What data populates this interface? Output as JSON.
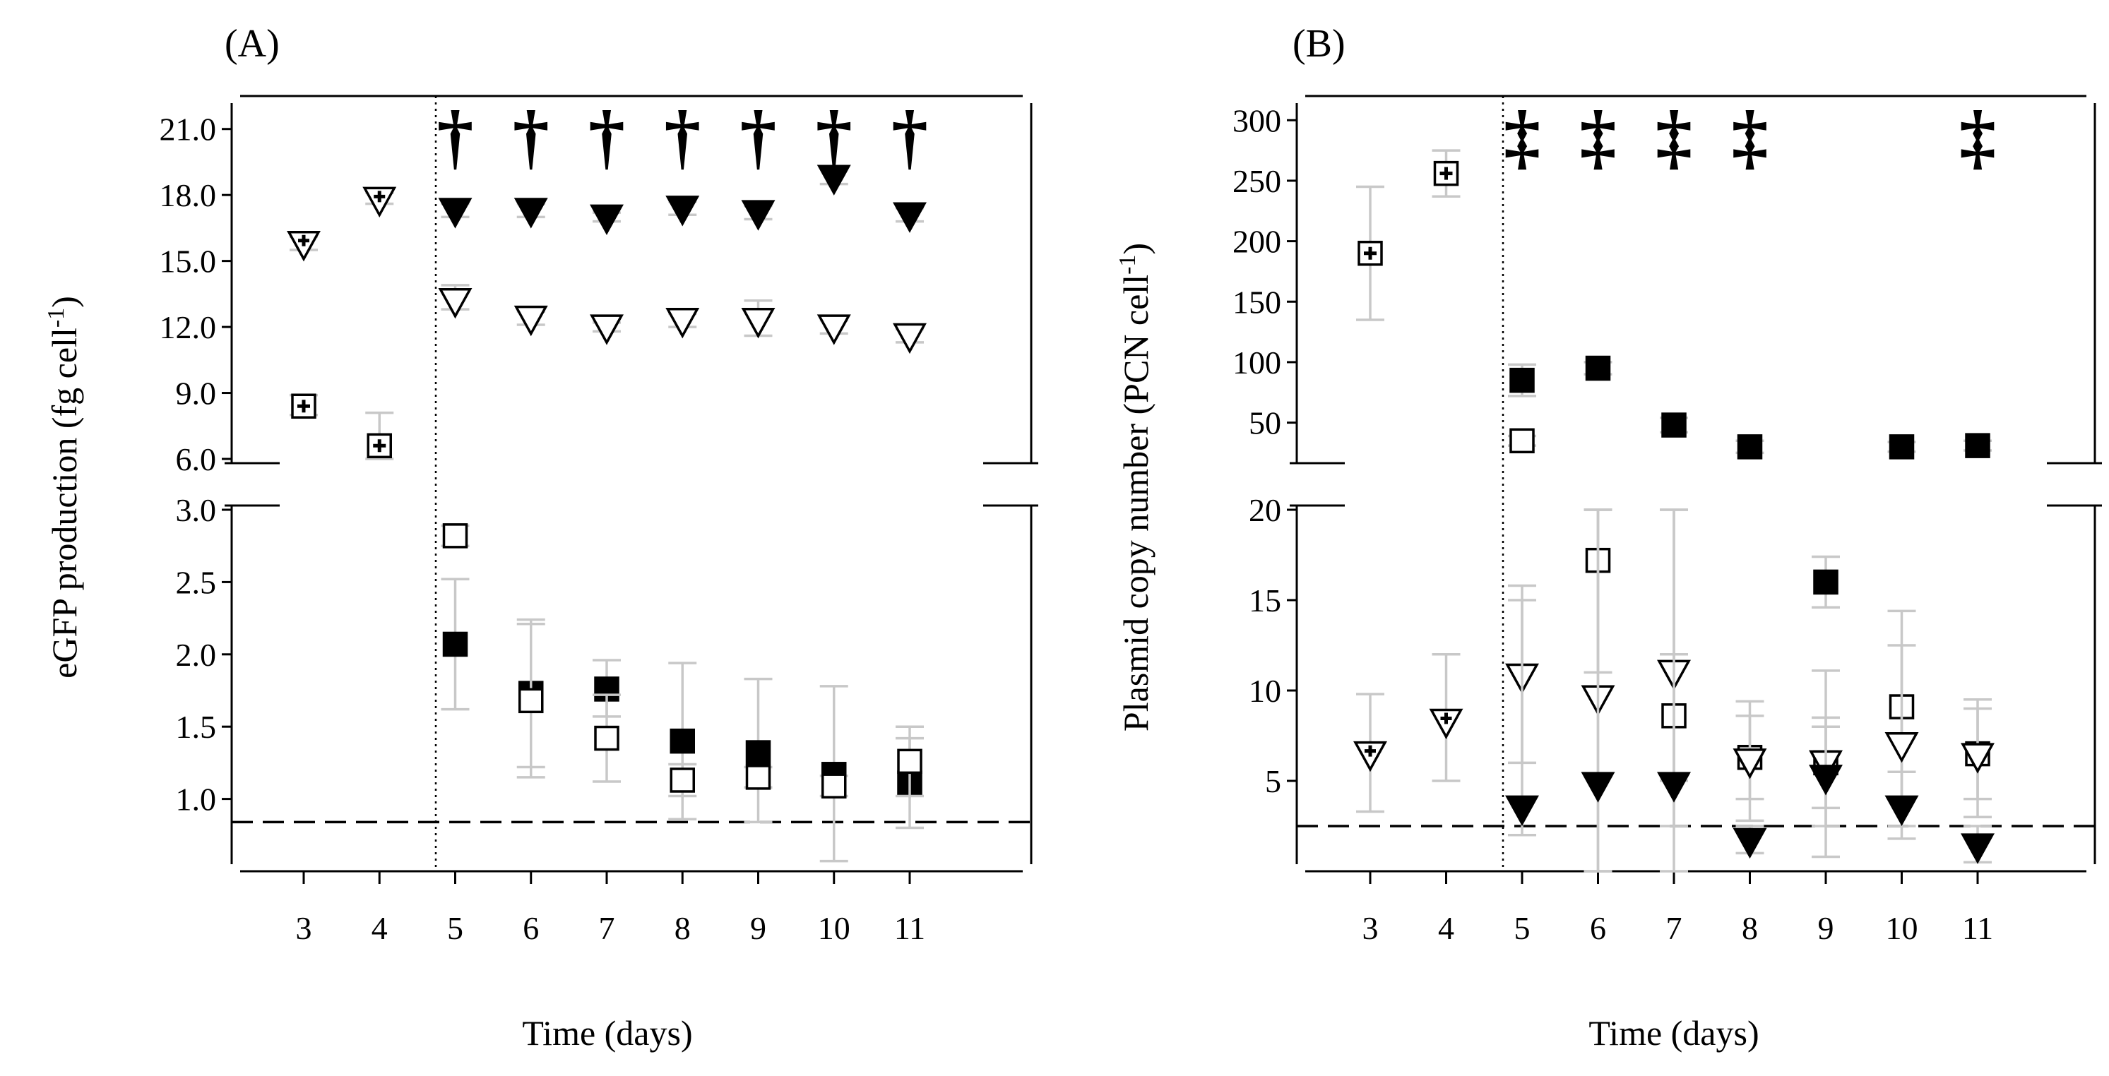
{
  "chart_data": [
    {
      "type": "scatter",
      "panel_label": "(A)",
      "xlabel": "Time (days)",
      "ylabel_main": "eGFP production (fg cell",
      "ylabel_sup": "-1",
      "ylabel_close": ")",
      "x_ticks": [
        3,
        4,
        5,
        6,
        7,
        8,
        9,
        10,
        11
      ],
      "upper_axis": {
        "range": [
          6.0,
          22.5
        ],
        "ticks": [
          "6.0",
          "9.0",
          "12.0",
          "15.0",
          "18.0",
          "21.0"
        ]
      },
      "lower_axis": {
        "range": [
          0.5,
          3.0
        ],
        "ticks": [
          "1.0",
          "1.5",
          "2.0",
          "2.5",
          "3.0"
        ]
      },
      "threshold": 0.84,
      "marker_symbol": "†",
      "marker_days": [
        5,
        6,
        7,
        8,
        9,
        10,
        11
      ],
      "series": [
        {
          "name": "pre-induction square",
          "marker": "square-cross",
          "axis": "upper",
          "points": [
            {
              "x": 3,
              "y": 8.4,
              "lo": 8.0,
              "hi": 8.9
            },
            {
              "x": 4,
              "y": 6.6,
              "lo": 6.0,
              "hi": 8.1
            }
          ]
        },
        {
          "name": "pre-induction triangle",
          "marker": "triangle-cross",
          "axis": "upper",
          "points": [
            {
              "x": 3,
              "y": 15.8,
              "lo": 15.5,
              "hi": 16.1
            },
            {
              "x": 4,
              "y": 17.8,
              "lo": 17.6,
              "hi": 18.1
            }
          ]
        },
        {
          "name": "filled triangle",
          "marker": "triangle-filled",
          "axis": "upper",
          "points": [
            {
              "x": 5,
              "y": 17.3,
              "lo": 17.0,
              "hi": 17.6
            },
            {
              "x": 6,
              "y": 17.3,
              "lo": 17.0,
              "hi": 17.6
            },
            {
              "x": 7,
              "y": 17.0,
              "lo": 16.8,
              "hi": 17.2
            },
            {
              "x": 8,
              "y": 17.4,
              "lo": 17.1,
              "hi": 17.7
            },
            {
              "x": 9,
              "y": 17.2,
              "lo": 16.9,
              "hi": 17.5
            },
            {
              "x": 10,
              "y": 18.8,
              "lo": 18.5,
              "hi": 19.3
            },
            {
              "x": 11,
              "y": 17.1,
              "lo": 16.8,
              "hi": 17.4
            }
          ]
        },
        {
          "name": "open triangle",
          "marker": "triangle-open",
          "axis": "upper",
          "points": [
            {
              "x": 5,
              "y": 13.2,
              "lo": 12.8,
              "hi": 13.9
            },
            {
              "x": 6,
              "y": 12.4,
              "lo": 12.1,
              "hi": 12.7
            },
            {
              "x": 7,
              "y": 12.0,
              "lo": 11.8,
              "hi": 12.2
            },
            {
              "x": 8,
              "y": 12.3,
              "lo": 12.0,
              "hi": 12.6
            },
            {
              "x": 9,
              "y": 12.3,
              "lo": 11.6,
              "hi": 13.2
            },
            {
              "x": 10,
              "y": 12.0,
              "lo": 11.7,
              "hi": 12.3
            },
            {
              "x": 11,
              "y": 11.6,
              "lo": 11.3,
              "hi": 11.9
            }
          ]
        },
        {
          "name": "filled square",
          "marker": "square-filled",
          "axis": "lower",
          "points": [
            {
              "x": 5,
              "y": 2.07,
              "lo": 1.62,
              "hi": 2.52
            },
            {
              "x": 6,
              "y": 1.73,
              "lo": 1.22,
              "hi": 2.24
            },
            {
              "x": 7,
              "y": 1.76,
              "lo": 1.57,
              "hi": 1.96
            },
            {
              "x": 8,
              "y": 1.4,
              "lo": 0.86,
              "hi": 1.94
            },
            {
              "x": 9,
              "y": 1.32,
              "lo": 0.84,
              "hi": 1.83
            },
            {
              "x": 10,
              "y": 1.17,
              "lo": 0.57,
              "hi": 1.78
            },
            {
              "x": 11,
              "y": 1.11,
              "lo": 0.8,
              "hi": 1.42
            }
          ]
        },
        {
          "name": "open square",
          "marker": "square-open",
          "axis": "lower",
          "points": [
            {
              "x": 5,
              "y": 2.82,
              "lo": 2.75,
              "hi": 2.89
            },
            {
              "x": 6,
              "y": 1.68,
              "lo": 1.15,
              "hi": 2.21
            },
            {
              "x": 7,
              "y": 1.42,
              "lo": 1.12,
              "hi": 1.72
            },
            {
              "x": 8,
              "y": 1.13,
              "lo": 1.02,
              "hi": 1.24
            },
            {
              "x": 9,
              "y": 1.15,
              "lo": 1.08,
              "hi": 1.22
            },
            {
              "x": 10,
              "y": 1.09,
              "lo": 1.02,
              "hi": 1.16
            },
            {
              "x": 11,
              "y": 1.26,
              "lo": 1.02,
              "hi": 1.5
            }
          ]
        }
      ]
    },
    {
      "type": "scatter",
      "panel_label": "(B)",
      "xlabel": "Time (days)",
      "ylabel_main": "Plasmid copy number (PCN cell",
      "ylabel_sup": "-1",
      "ylabel_close": ")",
      "x_ticks": [
        3,
        4,
        5,
        6,
        7,
        8,
        9,
        10,
        11
      ],
      "upper_axis": {
        "range": [
          20,
          320
        ],
        "ticks": [
          "50",
          "100",
          "150",
          "200",
          "250",
          "300"
        ]
      },
      "lower_axis": {
        "range": [
          0,
          20
        ],
        "ticks": [
          "5",
          "10",
          "15",
          "20"
        ]
      },
      "threshold": 2.5,
      "marker_symbol": "‡",
      "marker_days": [
        5,
        6,
        7,
        8,
        11
      ],
      "series": [
        {
          "name": "pre-induction square",
          "marker": "square-cross",
          "axis": "upper",
          "points": [
            {
              "x": 3,
              "y": 190,
              "lo": 135,
              "hi": 245
            },
            {
              "x": 4,
              "y": 256,
              "lo": 237,
              "hi": 275
            }
          ]
        },
        {
          "name": "pre-induction triangle",
          "marker": "triangle-cross",
          "axis": "lower",
          "points": [
            {
              "x": 3,
              "y": 6.5,
              "lo": 3.3,
              "hi": 9.8
            },
            {
              "x": 4,
              "y": 8.3,
              "lo": 5.0,
              "hi": 12.0
            }
          ]
        },
        {
          "name": "filled square",
          "marker": "square-filled",
          "axis": "upper",
          "points": [
            {
              "x": 5,
              "y": 85,
              "lo": 72,
              "hi": 98
            },
            {
              "x": 6,
              "y": 95,
              "lo": 90,
              "hi": 100
            },
            {
              "x": 7,
              "y": 48,
              "lo": 42,
              "hi": 54
            },
            {
              "x": 8,
              "y": 30,
              "lo": 25,
              "hi": 35
            },
            {
              "x": 10,
              "y": 30,
              "lo": 26,
              "hi": 34
            },
            {
              "x": 11,
              "y": 31,
              "lo": 27,
              "hi": 35
            }
          ]
        },
        {
          "name": "open square (upper)",
          "marker": "square-open",
          "axis": "upper",
          "points": [
            {
              "x": 5,
              "y": 35,
              "lo": 31,
              "hi": 39
            }
          ]
        },
        {
          "name": "filled square (lower)",
          "marker": "square-filled",
          "axis": "lower",
          "points": [
            {
              "x": 9,
              "y": 16,
              "lo": 14.6,
              "hi": 17.4
            }
          ]
        },
        {
          "name": "open square",
          "marker": "square-open",
          "axis": "lower",
          "points": [
            {
              "x": 6,
              "y": 17.2,
              "lo": 11.0,
              "hi": 20.0
            },
            {
              "x": 7,
              "y": 8.6,
              "lo": 5.0,
              "hi": 12.0
            },
            {
              "x": 8,
              "y": 6.3,
              "lo": 4.0,
              "hi": 8.6
            },
            {
              "x": 9,
              "y": 6.0,
              "lo": 3.5,
              "hi": 8.5
            },
            {
              "x": 10,
              "y": 9.1,
              "lo": 5.5,
              "hi": 12.5
            },
            {
              "x": 11,
              "y": 6.5,
              "lo": 4.0,
              "hi": 9.0
            }
          ]
        },
        {
          "name": "open triangle",
          "marker": "triangle-open",
          "axis": "lower",
          "points": [
            {
              "x": 5,
              "y": 10.8,
              "lo": 6.0,
              "hi": 15.8
            },
            {
              "x": 6,
              "y": 9.6,
              "lo": 0.0,
              "hi": 20.0
            },
            {
              "x": 7,
              "y": 11.0,
              "lo": 2.5,
              "hi": 20.0
            },
            {
              "x": 8,
              "y": 6.1,
              "lo": 2.8,
              "hi": 9.4
            },
            {
              "x": 9,
              "y": 6.0,
              "lo": 0.8,
              "hi": 11.1
            },
            {
              "x": 10,
              "y": 7.0,
              "lo": 2.5,
              "hi": 14.4
            },
            {
              "x": 11,
              "y": 6.4,
              "lo": 3.0,
              "hi": 9.5
            }
          ]
        },
        {
          "name": "filled triangle",
          "marker": "triangle-filled",
          "axis": "lower",
          "points": [
            {
              "x": 5,
              "y": 3.5,
              "lo": 2.0,
              "hi": 15.0
            },
            {
              "x": 6,
              "y": 4.8,
              "lo": 0.0,
              "hi": 20.0
            },
            {
              "x": 7,
              "y": 4.8,
              "lo": 0.0,
              "hi": 20.0
            },
            {
              "x": 8,
              "y": 1.7,
              "lo": 1.0,
              "hi": 2.5
            },
            {
              "x": 9,
              "y": 5.2,
              "lo": 2.5,
              "hi": 8.0
            },
            {
              "x": 10,
              "y": 3.5,
              "lo": 1.8,
              "hi": 5.5
            },
            {
              "x": 11,
              "y": 1.4,
              "lo": 0.5,
              "hi": 2.5
            }
          ]
        }
      ]
    }
  ]
}
